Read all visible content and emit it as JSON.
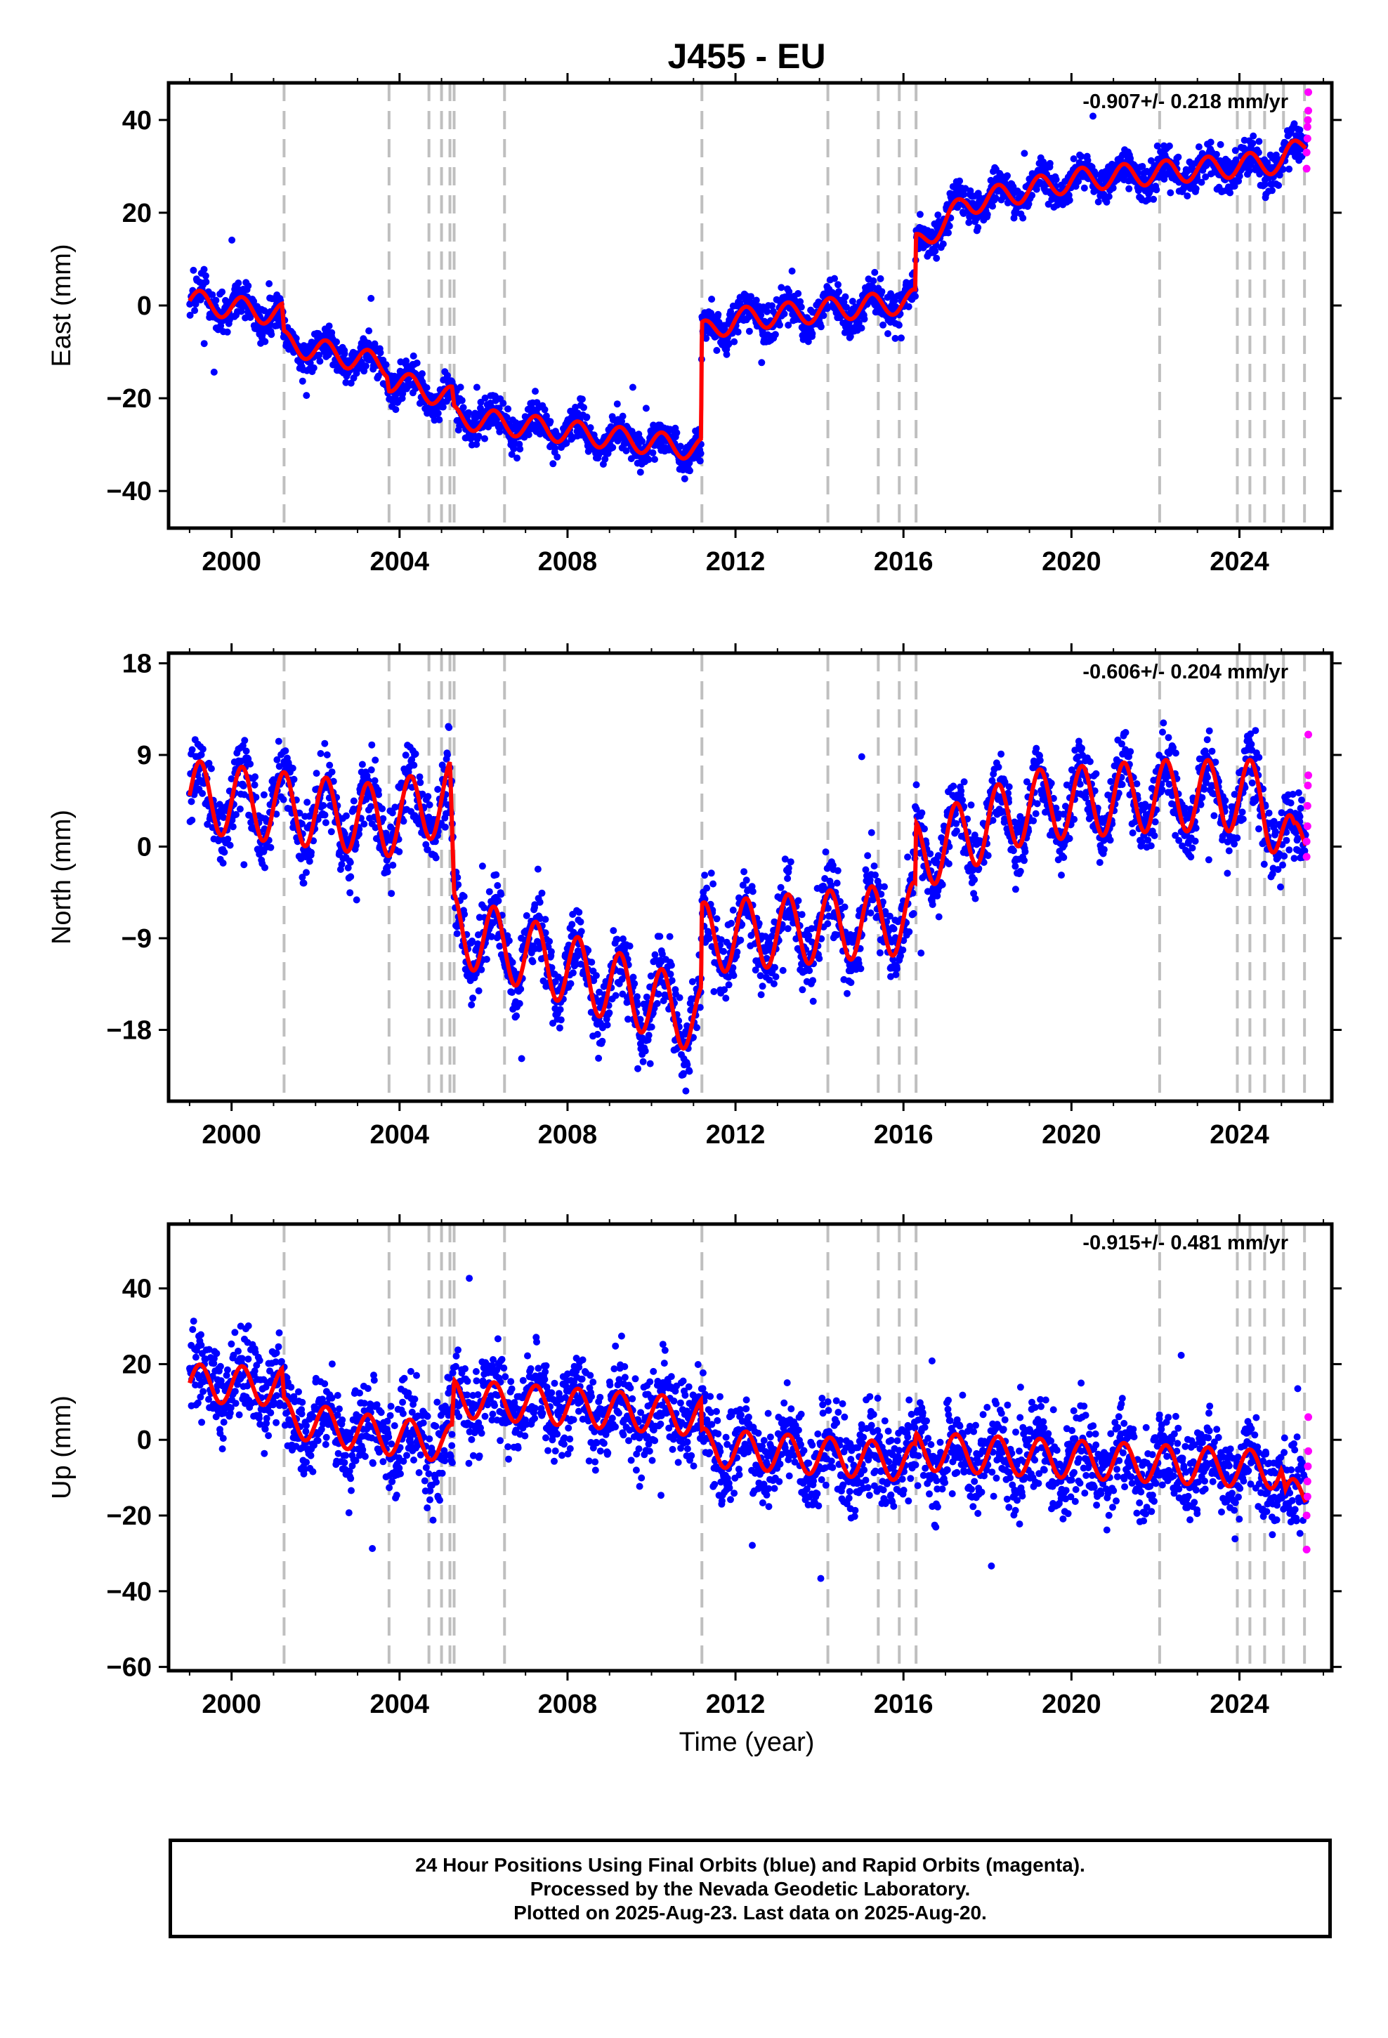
{
  "title": "J455 - EU",
  "xlabel": "Time (year)",
  "colors": {
    "final": "#0000ff",
    "rapid": "#ff00ff",
    "model": "#ff0000",
    "steps": "#bfbfbf"
  },
  "caption": [
    "24 Hour Positions Using Final Orbits (blue) and Rapid Orbits (magenta).",
    "Processed by the Nevada Geodetic Laboratory.",
    "Plotted on 2025-Aug-23. Last data on 2025-Aug-20."
  ],
  "chart_data": [
    {
      "type": "scatter",
      "ylabel": "East (mm)",
      "rate_label": "-0.907+/- 0.218 mm/yr",
      "xlim": [
        1998.5,
        2026.2
      ],
      "ylim": [
        -48,
        48
      ],
      "xticks": [
        2000,
        2004,
        2008,
        2012,
        2016,
        2020,
        2024
      ],
      "yticks": [
        -40,
        -20,
        0,
        20,
        40
      ],
      "grid": false,
      "step_epochs": [
        2001.25,
        2003.75,
        2004.7,
        2005.0,
        2005.2,
        2005.3,
        2006.5,
        2011.2,
        2014.2,
        2015.4,
        2015.9,
        2016.3,
        2022.1,
        2023.95,
        2024.25,
        2024.6,
        2025.05,
        2025.55
      ],
      "model_knots": [
        [
          1999.0,
          1.0
        ],
        [
          2001.2,
          -2.0
        ],
        [
          2001.25,
          -8.0
        ],
        [
          2003.7,
          -13.0
        ],
        [
          2003.75,
          -16.0
        ],
        [
          2005.25,
          -20.0
        ],
        [
          2005.3,
          -24.0
        ],
        [
          2011.18,
          -31.0
        ],
        [
          2011.2,
          -6.0
        ],
        [
          2012.0,
          -3.0
        ],
        [
          2016.28,
          1.0
        ],
        [
          2016.3,
          13.0
        ],
        [
          2017.5,
          22.0
        ],
        [
          2020.0,
          27.0
        ],
        [
          2025.0,
          31.0
        ],
        [
          2025.7,
          36.0
        ]
      ],
      "model_amplitude": 2.5,
      "data_noise": 2.0,
      "rapid_points": [
        [
          2025.6,
          29.5
        ],
        [
          2025.6,
          33.0
        ],
        [
          2025.62,
          36.0
        ],
        [
          2025.62,
          38.5
        ],
        [
          2025.63,
          40.0
        ],
        [
          2025.64,
          42.0
        ],
        [
          2025.64,
          46.0
        ]
      ]
    },
    {
      "type": "scatter",
      "ylabel": "North (mm)",
      "rate_label": "-0.606+/- 0.204 mm/yr",
      "xlim": [
        1998.5,
        2026.2
      ],
      "ylim": [
        -25,
        19
      ],
      "xticks": [
        2000,
        2004,
        2008,
        2012,
        2016,
        2020,
        2024
      ],
      "yticks": [
        -18,
        -9,
        0,
        9,
        18
      ],
      "grid": false,
      "step_epochs": [
        2001.25,
        2003.75,
        2004.7,
        2005.0,
        2005.2,
        2005.3,
        2006.5,
        2011.2,
        2014.2,
        2015.4,
        2015.9,
        2016.3,
        2022.1,
        2023.95,
        2024.25,
        2024.6,
        2025.05,
        2025.55
      ],
      "model_knots": [
        [
          1999.0,
          5.0
        ],
        [
          2003.7,
          2.5
        ],
        [
          2005.2,
          5.0
        ],
        [
          2005.3,
          -8.0
        ],
        [
          2008.0,
          -12.0
        ],
        [
          2011.18,
          -17.0
        ],
        [
          2011.2,
          -9.0
        ],
        [
          2016.28,
          -7.0
        ],
        [
          2016.3,
          -1.0
        ],
        [
          2019.0,
          4.0
        ],
        [
          2022.0,
          5.0
        ],
        [
          2024.5,
          5.0
        ],
        [
          2025.3,
          -1.0
        ],
        [
          2025.6,
          2.0
        ]
      ],
      "model_amplitude": 3.5,
      "data_noise": 1.8,
      "rapid_points": [
        [
          2025.6,
          -1.0
        ],
        [
          2025.6,
          0.5
        ],
        [
          2025.62,
          2.0
        ],
        [
          2025.62,
          4.0
        ],
        [
          2025.63,
          6.0
        ],
        [
          2025.64,
          7.0
        ],
        [
          2025.64,
          11.0
        ]
      ]
    },
    {
      "type": "scatter",
      "ylabel": "Up (mm)",
      "rate_label": "-0.915+/- 0.481 mm/yr",
      "xlim": [
        1998.5,
        2026.2
      ],
      "ylim": [
        -61,
        57
      ],
      "xticks": [
        2000,
        2004,
        2008,
        2012,
        2016,
        2020,
        2024
      ],
      "yticks": [
        -60,
        -40,
        -20,
        0,
        20,
        40
      ],
      "grid": false,
      "step_epochs": [
        2001.25,
        2003.75,
        2004.7,
        2005.0,
        2005.2,
        2005.3,
        2006.5,
        2011.2,
        2014.2,
        2015.4,
        2015.9,
        2016.3,
        2022.1,
        2023.95,
        2024.25,
        2024.6,
        2025.05,
        2025.55
      ],
      "model_knots": [
        [
          1999.0,
          15.0
        ],
        [
          2001.2,
          14.0
        ],
        [
          2001.25,
          6.0
        ],
        [
          2003.0,
          2.0
        ],
        [
          2005.25,
          -1.0
        ],
        [
          2005.3,
          11.0
        ],
        [
          2011.18,
          6.0
        ],
        [
          2011.2,
          -2.0
        ],
        [
          2016.28,
          -6.0
        ],
        [
          2016.3,
          -3.0
        ],
        [
          2025.0,
          -8.0
        ],
        [
          2025.1,
          -16.0
        ],
        [
          2025.6,
          -14.0
        ]
      ],
      "model_amplitude": 5.0,
      "data_noise": 6.0,
      "rapid_points": [
        [
          2025.6,
          -29.0
        ],
        [
          2025.6,
          -20.0
        ],
        [
          2025.62,
          -15.0
        ],
        [
          2025.62,
          -11.0
        ],
        [
          2025.63,
          -7.0
        ],
        [
          2025.64,
          -3.0
        ],
        [
          2025.64,
          6.0
        ]
      ]
    }
  ]
}
